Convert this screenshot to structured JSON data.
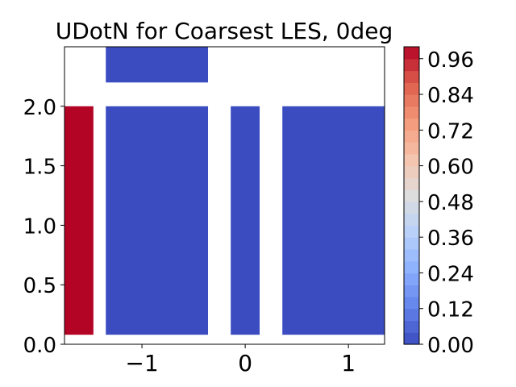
{
  "chart_data": {
    "type": "heatmap",
    "title": "UDotN for Coarsest LES, 0deg",
    "xlabel": "",
    "ylabel": "",
    "xlim": [
      -1.75,
      1.35
    ],
    "ylim": [
      0.0,
      2.5
    ],
    "xticks": [
      -1,
      0,
      1
    ],
    "xtick_labels": [
      "−1",
      "0",
      "1"
    ],
    "yticks": [
      0.0,
      0.5,
      1.0,
      1.5,
      2.0
    ],
    "ytick_labels": [
      "0.0",
      "0.5",
      "1.0",
      "1.5",
      "2.0"
    ],
    "regions": [
      {
        "x0": -1.75,
        "x1": -1.47,
        "y0": 0.08,
        "y1": 2.0,
        "value": 1.0
      },
      {
        "x0": -1.35,
        "x1": -0.36,
        "y0": 0.08,
        "y1": 2.0,
        "value": 0.0
      },
      {
        "x0": -1.35,
        "x1": -0.36,
        "y0": 2.2,
        "y1": 2.5,
        "value": 0.0
      },
      {
        "x0": -0.14,
        "x1": 0.14,
        "y0": 0.08,
        "y1": 2.0,
        "value": 0.0
      },
      {
        "x0": 0.36,
        "x1": 1.35,
        "y0": 0.08,
        "y1": 2.0,
        "value": 0.0
      }
    ],
    "colorbar": {
      "colormap": "coolwarm",
      "min": 0.0,
      "max": 1.0,
      "levels": 25,
      "ticks": [
        0.0,
        0.12,
        0.24,
        0.36,
        0.48,
        0.6,
        0.72,
        0.84,
        0.96
      ],
      "tick_labels": [
        "0.00",
        "0.12",
        "0.24",
        "0.36",
        "0.48",
        "0.60",
        "0.72",
        "0.84",
        "0.96"
      ]
    },
    "grid": false,
    "legend": "none"
  }
}
